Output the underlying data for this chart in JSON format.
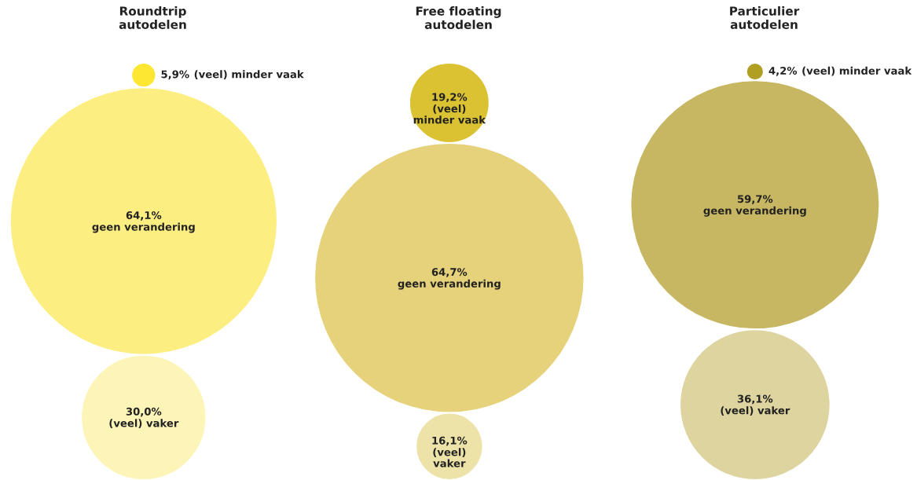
{
  "chart_data": [
    {
      "type": "other",
      "title": "Roundtrip\nautodelen",
      "categories": [
        "(veel) minder vaak",
        "geen verandering",
        "(veel) vaker"
      ],
      "values": [
        5.9,
        64.1,
        30.0
      ],
      "value_labels": [
        "5,9%",
        "64,1%",
        "30,0%"
      ],
      "colors": [
        "#fde733",
        "#fdee82",
        "#fdf5b8"
      ]
    },
    {
      "type": "other",
      "title": "Free floating\nautodelen",
      "categories": [
        "(veel) minder vaak",
        "geen verandering",
        "(veel) vaker"
      ],
      "values": [
        19.2,
        64.7,
        16.1
      ],
      "value_labels": [
        "19,2%",
        "64,7%",
        "16,1%"
      ],
      "colors": [
        "#dbc233",
        "#e6d27a",
        "#ede2a8"
      ]
    },
    {
      "type": "other",
      "title": "Particulier\nautodelen",
      "categories": [
        "(veel) minder vaak",
        "geen verandering",
        "(veel) vaker"
      ],
      "values": [
        4.2,
        59.7,
        36.1
      ],
      "value_labels": [
        "4,2%",
        "59,7%",
        "36,1%"
      ],
      "colors": [
        "#b09f22",
        "#c8b762",
        "#ded4a0"
      ]
    }
  ]
}
